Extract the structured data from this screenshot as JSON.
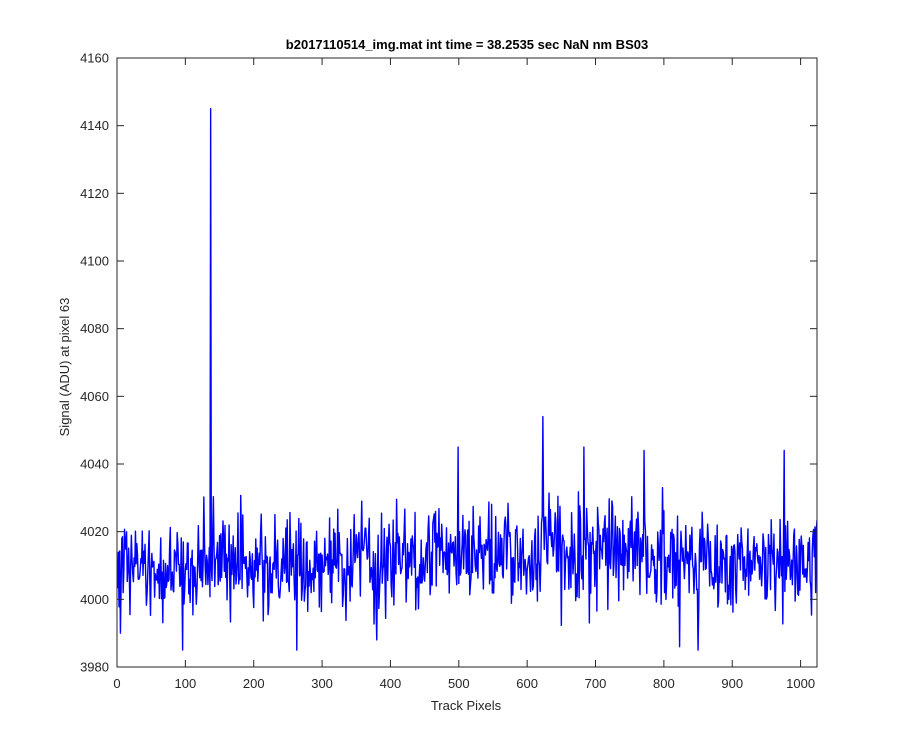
{
  "chart_data": {
    "type": "line",
    "title": "b2017110514_img.mat int time = 38.2535 sec  NaN nm BS03",
    "xlabel": "Track Pixels",
    "ylabel": "Signal (ADU) at pixel 63",
    "xlim": [
      0,
      1024
    ],
    "ylim": [
      3980,
      4160
    ],
    "xticks": [
      0,
      100,
      200,
      300,
      400,
      500,
      600,
      700,
      800,
      900,
      1000
    ],
    "yticks": [
      3980,
      4000,
      4020,
      4040,
      4060,
      4080,
      4100,
      4120,
      4140,
      4160
    ],
    "grid": false,
    "line_color": "#0000ff",
    "series": [
      {
        "n_points": 1024,
        "baseline_mean_approx": 4011,
        "noise_range_approx": [
          3985,
          4033
        ],
        "notable_points": [
          {
            "x": 136,
            "y": 4145
          },
          {
            "x": 622,
            "y": 4054
          },
          {
            "x": 498,
            "y": 4045
          },
          {
            "x": 682,
            "y": 4045
          },
          {
            "x": 770,
            "y": 4044
          },
          {
            "x": 975,
            "y": 4044
          },
          {
            "x": 4,
            "y": 3990
          },
          {
            "x": 95,
            "y": 3985
          },
          {
            "x": 262,
            "y": 3985
          },
          {
            "x": 822,
            "y": 3986
          },
          {
            "x": 849,
            "y": 3985
          }
        ]
      }
    ]
  }
}
